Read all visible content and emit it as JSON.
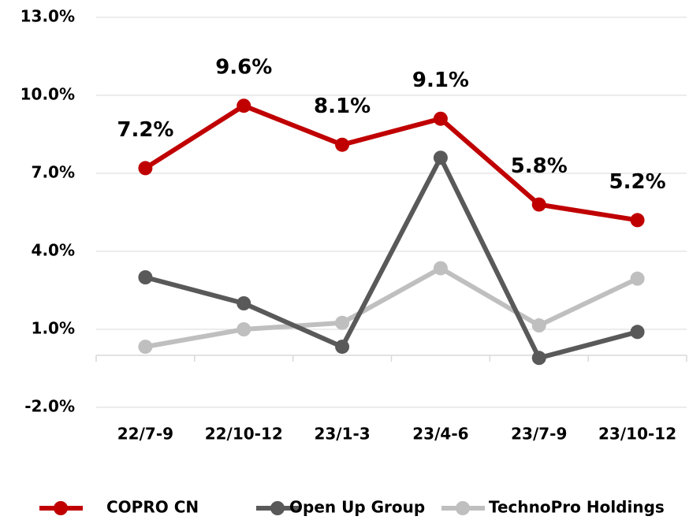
{
  "chart_data": {
    "type": "line",
    "categories": [
      "22/7-9",
      "22/10-12",
      "23/1-3",
      "23/4-6",
      "23/7-9",
      "23/10-12"
    ],
    "series": [
      {
        "name": "COPRO CN",
        "color": "#c00000",
        "values": [
          7.2,
          9.6,
          8.1,
          9.1,
          5.8,
          5.2
        ],
        "value_labels": [
          "7.2%",
          "9.6%",
          "8.1%",
          "9.1%",
          "5.8%",
          "5.2%"
        ]
      },
      {
        "name": "Open Up Group",
        "color": "#595959",
        "values": [
          3.0,
          2.0,
          0.33,
          7.6,
          -0.1,
          0.9
        ]
      },
      {
        "name": "TechnoPro Holdings",
        "color": "#bfbfbf",
        "values": [
          0.33,
          1.0,
          1.25,
          3.35,
          1.15,
          2.95
        ]
      }
    ],
    "ylim": [
      -2,
      13
    ],
    "yticks": [
      {
        "value": -2,
        "label": "-2.0%"
      },
      {
        "value": 1,
        "label": "1.0%"
      },
      {
        "value": 4,
        "label": "4.0%"
      },
      {
        "value": 7,
        "label": "7.0%"
      },
      {
        "value": 10,
        "label": "10.0%"
      },
      {
        "value": 13,
        "label": "13.0%"
      }
    ],
    "grid": true,
    "legend": "bottom"
  }
}
